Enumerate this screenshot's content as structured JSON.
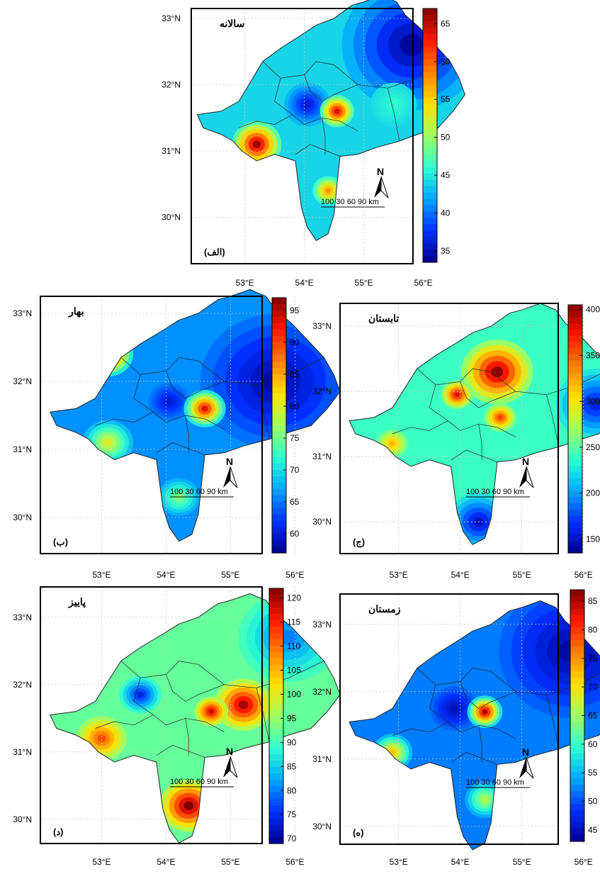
{
  "figure": {
    "lat_ticks": [
      "33°N",
      "32°N",
      "31°N",
      "30°N"
    ],
    "lon_ticks": [
      "53°E",
      "54°E",
      "55°E",
      "56°E"
    ],
    "north_label": "N",
    "scalebar_label": "100  30  60  90 km",
    "colormap": [
      "#00008f",
      "#0030ff",
      "#00a8ff",
      "#30ffd0",
      "#a0ff60",
      "#ffe000",
      "#ff8000",
      "#ff1800",
      "#800000"
    ]
  },
  "panels": [
    {
      "id": "alef",
      "title": "سالانه",
      "letter": "(الف)",
      "colorbar": {
        "ticks": [
          65,
          60,
          55,
          50,
          45,
          40,
          35
        ],
        "min": 33.5,
        "max": 67
      },
      "hotspots": [
        {
          "lon": 53.2,
          "lat": 31.1,
          "value": 66,
          "r": 0.32
        },
        {
          "lon": 54.55,
          "lat": 31.6,
          "value": 64,
          "r": 0.22
        },
        {
          "lon": 54.4,
          "lat": 30.4,
          "value": 58,
          "r": 0.2
        },
        {
          "lon": 55.5,
          "lat": 31.7,
          "value": 46,
          "r": 0.3
        }
      ],
      "coldspots": [
        {
          "lon": 55.8,
          "lat": 32.6,
          "value": 34,
          "r": 0.9
        },
        {
          "lon": 54.05,
          "lat": 31.7,
          "value": 36,
          "r": 0.3
        }
      ],
      "base_value": 44
    },
    {
      "id": "be",
      "title": "بهار",
      "letter": "(ب)",
      "colorbar": {
        "ticks": [
          95,
          90,
          85,
          80,
          75,
          70,
          65,
          60
        ],
        "min": 57,
        "max": 97
      },
      "hotspots": [
        {
          "lon": 53.1,
          "lat": 32.4,
          "value": 95,
          "r": 0.3
        },
        {
          "lon": 54.6,
          "lat": 31.6,
          "value": 93,
          "r": 0.25
        },
        {
          "lon": 53.1,
          "lat": 31.1,
          "value": 80,
          "r": 0.3
        },
        {
          "lon": 54.2,
          "lat": 30.3,
          "value": 76,
          "r": 0.25
        }
      ],
      "coldspots": [
        {
          "lon": 55.7,
          "lat": 32.0,
          "value": 58,
          "r": 0.9
        },
        {
          "lon": 54.05,
          "lat": 31.7,
          "value": 60,
          "r": 0.25
        }
      ],
      "base_value": 66
    },
    {
      "id": "jim",
      "title": "تابستان",
      "letter": "(ج)",
      "colorbar": {
        "ticks": [
          400,
          350,
          300,
          250,
          200,
          150
        ],
        "min": 135,
        "max": 405
      },
      "hotspots": [
        {
          "lon": 54.6,
          "lat": 32.3,
          "value": 400,
          "r": 0.45
        },
        {
          "lon": 53.95,
          "lat": 31.95,
          "value": 380,
          "r": 0.2
        },
        {
          "lon": 54.65,
          "lat": 31.6,
          "value": 360,
          "r": 0.2
        },
        {
          "lon": 52.9,
          "lat": 31.2,
          "value": 320,
          "r": 0.2
        }
      ],
      "coldspots": [
        {
          "lon": 56.2,
          "lat": 31.8,
          "value": 160,
          "r": 0.5
        },
        {
          "lon": 54.3,
          "lat": 30.0,
          "value": 150,
          "r": 0.4
        }
      ],
      "base_value": 240
    },
    {
      "id": "dal",
      "title": "پاییز",
      "letter": "(د)",
      "colorbar": {
        "ticks": [
          120,
          115,
          110,
          105,
          100,
          95,
          90,
          85,
          80,
          75,
          70
        ],
        "min": 69,
        "max": 122
      },
      "hotspots": [
        {
          "lon": 55.2,
          "lat": 31.7,
          "value": 120,
          "r": 0.35
        },
        {
          "lon": 54.35,
          "lat": 30.2,
          "value": 122,
          "r": 0.35
        },
        {
          "lon": 54.7,
          "lat": 31.6,
          "value": 118,
          "r": 0.2
        },
        {
          "lon": 53.0,
          "lat": 31.2,
          "value": 112,
          "r": 0.3
        }
      ],
      "coldspots": [
        {
          "lon": 55.9,
          "lat": 32.7,
          "value": 80,
          "r": 0.6
        },
        {
          "lon": 53.6,
          "lat": 31.85,
          "value": 74,
          "r": 0.25
        }
      ],
      "base_value": 92
    },
    {
      "id": "he",
      "title": "زمستان",
      "letter": "(ه)",
      "colorbar": {
        "ticks": [
          85,
          80,
          75,
          70,
          65,
          60,
          55,
          50,
          45
        ],
        "min": 43,
        "max": 87
      },
      "hotspots": [
        {
          "lon": 54.4,
          "lat": 31.7,
          "value": 85,
          "r": 0.22
        },
        {
          "lon": 52.9,
          "lat": 31.1,
          "value": 72,
          "r": 0.25
        },
        {
          "lon": 54.4,
          "lat": 30.4,
          "value": 66,
          "r": 0.25
        }
      ],
      "coldspots": [
        {
          "lon": 55.8,
          "lat": 32.6,
          "value": 44,
          "r": 0.9
        },
        {
          "lon": 53.9,
          "lat": 31.75,
          "value": 45,
          "r": 0.3
        }
      ],
      "base_value": 52
    }
  ]
}
